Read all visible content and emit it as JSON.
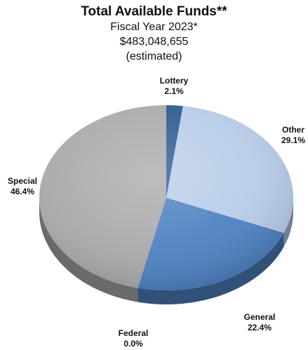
{
  "chart_data": {
    "type": "pie",
    "title": "Total Available Funds**",
    "subtitle_lines": [
      "Fiscal Year 2023*",
      "$483,048,655",
      "(estimated)"
    ],
    "slices": [
      {
        "name": "Lottery",
        "value": 2.1,
        "label": "2.1%",
        "color": "#2f5c93"
      },
      {
        "name": "Other",
        "value": 29.1,
        "label": "29.1%",
        "color": "#b9cde8"
      },
      {
        "name": "General",
        "value": 22.4,
        "label": "22.4%",
        "color": "#4f82c2"
      },
      {
        "name": "Federal",
        "value": 0.0,
        "label": "0.0%",
        "color": "#5a5a5a"
      },
      {
        "name": "Special",
        "value": 46.4,
        "label": "46.4%",
        "color": "#ababab"
      }
    ],
    "legend": "none"
  }
}
